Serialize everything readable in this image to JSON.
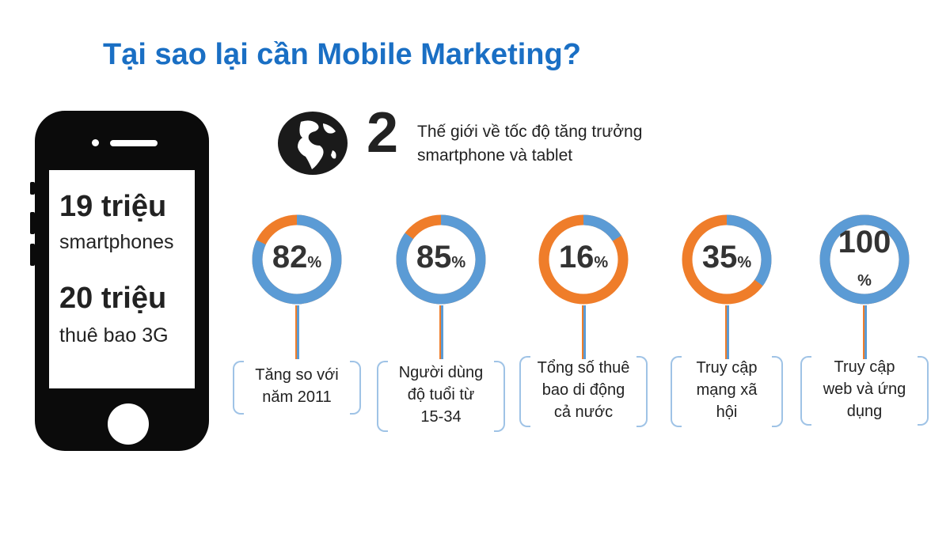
{
  "title": "Tại sao lại cần Mobile Marketing?",
  "phone": {
    "stat1_value": "19 triệu",
    "stat1_label": "smartphones",
    "stat2_value": "20 triệu",
    "stat2_label": "thuê bao 3G"
  },
  "header": {
    "icon": "globe-icon",
    "rank": "2",
    "text_line1": "Thế giới về tốc độ tăng trưởng",
    "text_line2": "smartphone và tablet"
  },
  "colors": {
    "accent": "#5b9bd5",
    "secondary": "#ef7d2a",
    "title": "#1a6fc4"
  },
  "chart_data": {
    "type": "pie",
    "series": [
      {
        "value": 82,
        "display": "82",
        "label_lines": [
          "Tăng so với",
          "năm 2011"
        ]
      },
      {
        "value": 85,
        "display": "85",
        "label_lines": [
          "Người dùng",
          "độ tuổi từ",
          "15-34"
        ]
      },
      {
        "value": 16,
        "display": "16",
        "label_lines": [
          "Tổng số thuê",
          "bao di động",
          "cả nước"
        ]
      },
      {
        "value": 35,
        "display": "35",
        "label_lines": [
          "Truy cập",
          "mạng xã",
          "hội"
        ]
      },
      {
        "value": 100,
        "display": "100",
        "label_lines": [
          "Truy cập",
          "web và ứng",
          "dụng"
        ]
      }
    ],
    "unit": "%"
  }
}
